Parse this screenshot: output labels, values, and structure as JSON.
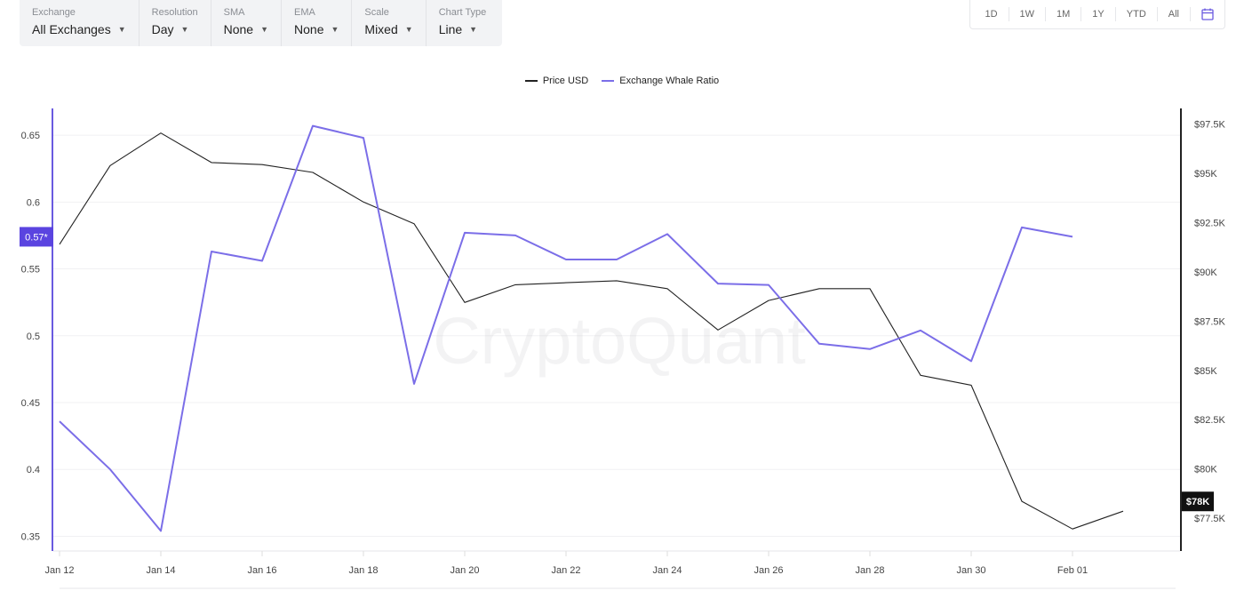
{
  "toolbar": {
    "controls": [
      {
        "label": "Exchange",
        "value": "All Exchanges"
      },
      {
        "label": "Resolution",
        "value": "Day"
      },
      {
        "label": "SMA",
        "value": "None"
      },
      {
        "label": "EMA",
        "value": "None"
      },
      {
        "label": "Scale",
        "value": "Mixed"
      },
      {
        "label": "Chart Type",
        "value": "Line"
      }
    ]
  },
  "ranges": [
    "1D",
    "1W",
    "1M",
    "1Y",
    "YTD",
    "All"
  ],
  "icons": {
    "calendar": "calendar-icon",
    "dropdown": "caret-down-icon"
  },
  "watermark": "CryptoQuant",
  "chart_data": {
    "type": "line",
    "x": [
      "Jan 12",
      "Jan 13",
      "Jan 14",
      "Jan 15",
      "Jan 16",
      "Jan 17",
      "Jan 18",
      "Jan 19",
      "Jan 20",
      "Jan 21",
      "Jan 22",
      "Jan 23",
      "Jan 24",
      "Jan 25",
      "Jan 26",
      "Jan 27",
      "Jan 28",
      "Jan 29",
      "Jan 30",
      "Jan 31",
      "Feb 01",
      "Feb 02"
    ],
    "x_tick_labels": [
      "Jan 12",
      "Jan 14",
      "Jan 16",
      "Jan 18",
      "Jan 20",
      "Jan 22",
      "Jan 24",
      "Jan 26",
      "Jan 28",
      "Jan 30",
      "Feb 01"
    ],
    "series": [
      {
        "name": "Price USD",
        "axis": "right",
        "color": "#222222",
        "values": [
          91400,
          95400,
          97050,
          95550,
          95450,
          95050,
          93550,
          92450,
          88450,
          89350,
          89450,
          89550,
          89150,
          87050,
          88550,
          89150,
          89150,
          84750,
          84250,
          78350,
          76950,
          77850
        ]
      },
      {
        "name": "Exchange Whale Ratio",
        "axis": "left",
        "color": "#7b6ee8",
        "values": [
          0.436,
          0.4,
          0.354,
          0.563,
          0.556,
          0.657,
          0.648,
          0.464,
          0.577,
          0.575,
          0.557,
          0.557,
          0.576,
          0.539,
          0.538,
          0.494,
          0.49,
          0.504,
          0.481,
          0.581,
          0.574,
          null
        ]
      }
    ],
    "y_left": {
      "ticks": [
        0.35,
        0.4,
        0.45,
        0.5,
        0.55,
        0.6,
        0.65
      ],
      "tick_labels": [
        "0.35",
        "0.4",
        "0.45",
        "0.5",
        "0.55",
        "0.6",
        "0.65"
      ],
      "range": [
        0.339,
        0.67
      ]
    },
    "y_right": {
      "ticks": [
        77500,
        80000,
        82500,
        85000,
        87500,
        90000,
        92500,
        95000,
        97500
      ],
      "tick_labels": [
        "$77.5K",
        "$80K",
        "$82.5K",
        "$85K",
        "$87.5K",
        "$90K",
        "$92.5K",
        "$95K",
        "$97.5K"
      ],
      "range": [
        75830,
        98300
      ],
      "scale": "linear"
    },
    "last_value_labels": {
      "left": "0.57*",
      "right": "$78K"
    },
    "grid": true,
    "legend": "top-center"
  }
}
